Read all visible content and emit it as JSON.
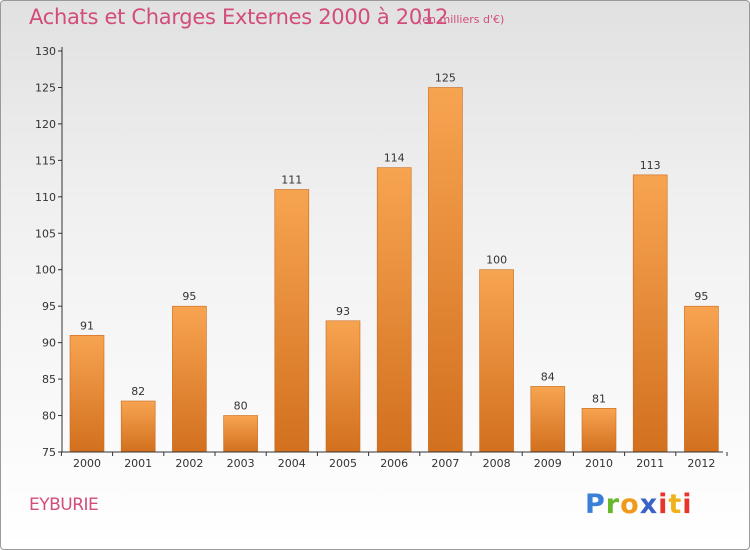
{
  "header": {
    "title": "Achats et Charges Externes 2000 à 2012",
    "subtitle": "(en milliers d'€)"
  },
  "footer": {
    "commune": "EYBURIE",
    "logo_letters": [
      "P",
      "r",
      "o",
      "x",
      "i",
      "t",
      "i"
    ]
  },
  "colors": {
    "title": "#d24c7c",
    "bar_light": "#f7a451",
    "bar_dark": "#d2701e"
  },
  "chart_data": {
    "type": "bar",
    "categories": [
      "2000",
      "2001",
      "2002",
      "2003",
      "2004",
      "2005",
      "2006",
      "2007",
      "2008",
      "2009",
      "2010",
      "2011",
      "2012"
    ],
    "values": [
      91,
      82,
      95,
      80,
      111,
      93,
      114,
      125,
      100,
      84,
      81,
      113,
      95
    ],
    "ylim": [
      75,
      130
    ],
    "yticks": [
      75,
      80,
      85,
      90,
      95,
      100,
      105,
      110,
      115,
      120,
      125,
      130
    ],
    "grid": false,
    "legend": "none"
  }
}
